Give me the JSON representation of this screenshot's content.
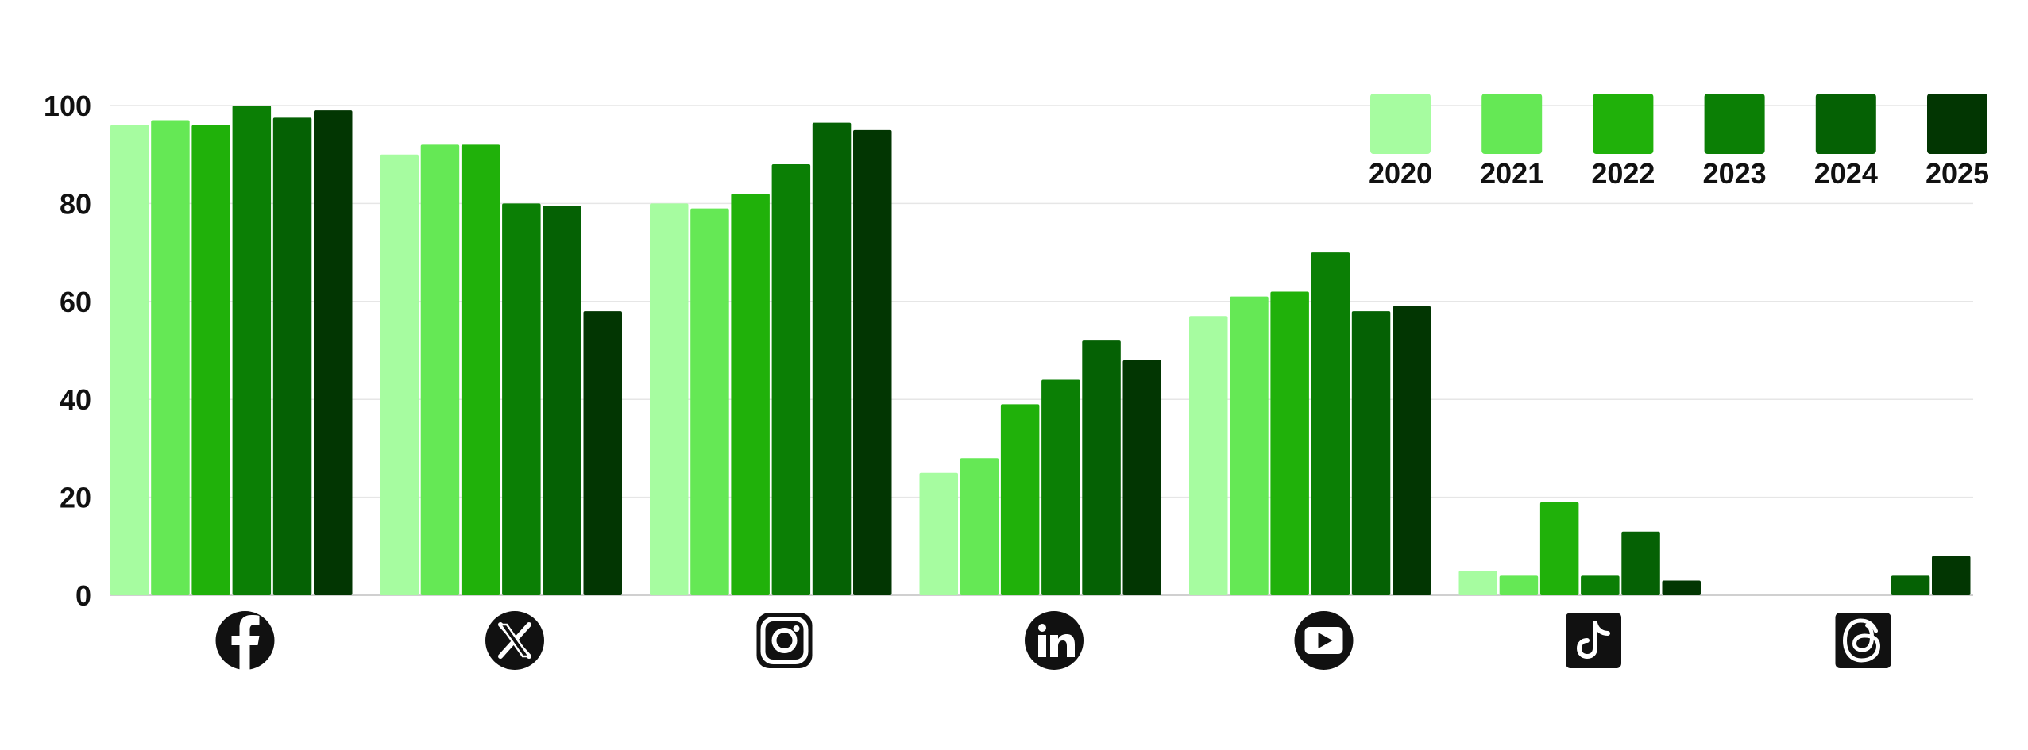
{
  "chart_data": {
    "type": "bar",
    "categories": [
      "Facebook",
      "X",
      "Instagram",
      "LinkedIn",
      "YouTube",
      "TikTok",
      "Threads"
    ],
    "category_icons": [
      "facebook-icon",
      "x-icon",
      "instagram-icon",
      "linkedin-icon",
      "youtube-icon",
      "tiktok-icon",
      "threads-icon"
    ],
    "series": [
      {
        "name": "2020",
        "color": "#a6fca0",
        "values": [
          96,
          90,
          80,
          25,
          57,
          5,
          0
        ]
      },
      {
        "name": "2021",
        "color": "#65e855",
        "values": [
          97,
          92,
          79,
          28,
          61,
          4,
          0
        ]
      },
      {
        "name": "2022",
        "color": "#20b10a",
        "values": [
          96,
          92,
          82,
          39,
          62,
          19,
          0
        ]
      },
      {
        "name": "2023",
        "color": "#0b7f05",
        "values": [
          100,
          80,
          88,
          44,
          70,
          4,
          0
        ]
      },
      {
        "name": "2024",
        "color": "#056104",
        "values": [
          97.5,
          79.5,
          96.5,
          52,
          58,
          13,
          4
        ]
      },
      {
        "name": "2025",
        "color": "#023602",
        "values": [
          99,
          58,
          95,
          48,
          59,
          3,
          8
        ]
      }
    ],
    "yticks": [
      "0",
      "20",
      "40",
      "60",
      "80",
      "100"
    ],
    "ylim": [
      0,
      100
    ],
    "grid": true,
    "legend": "top-right",
    "title": "",
    "xlabel": "",
    "ylabel": ""
  }
}
